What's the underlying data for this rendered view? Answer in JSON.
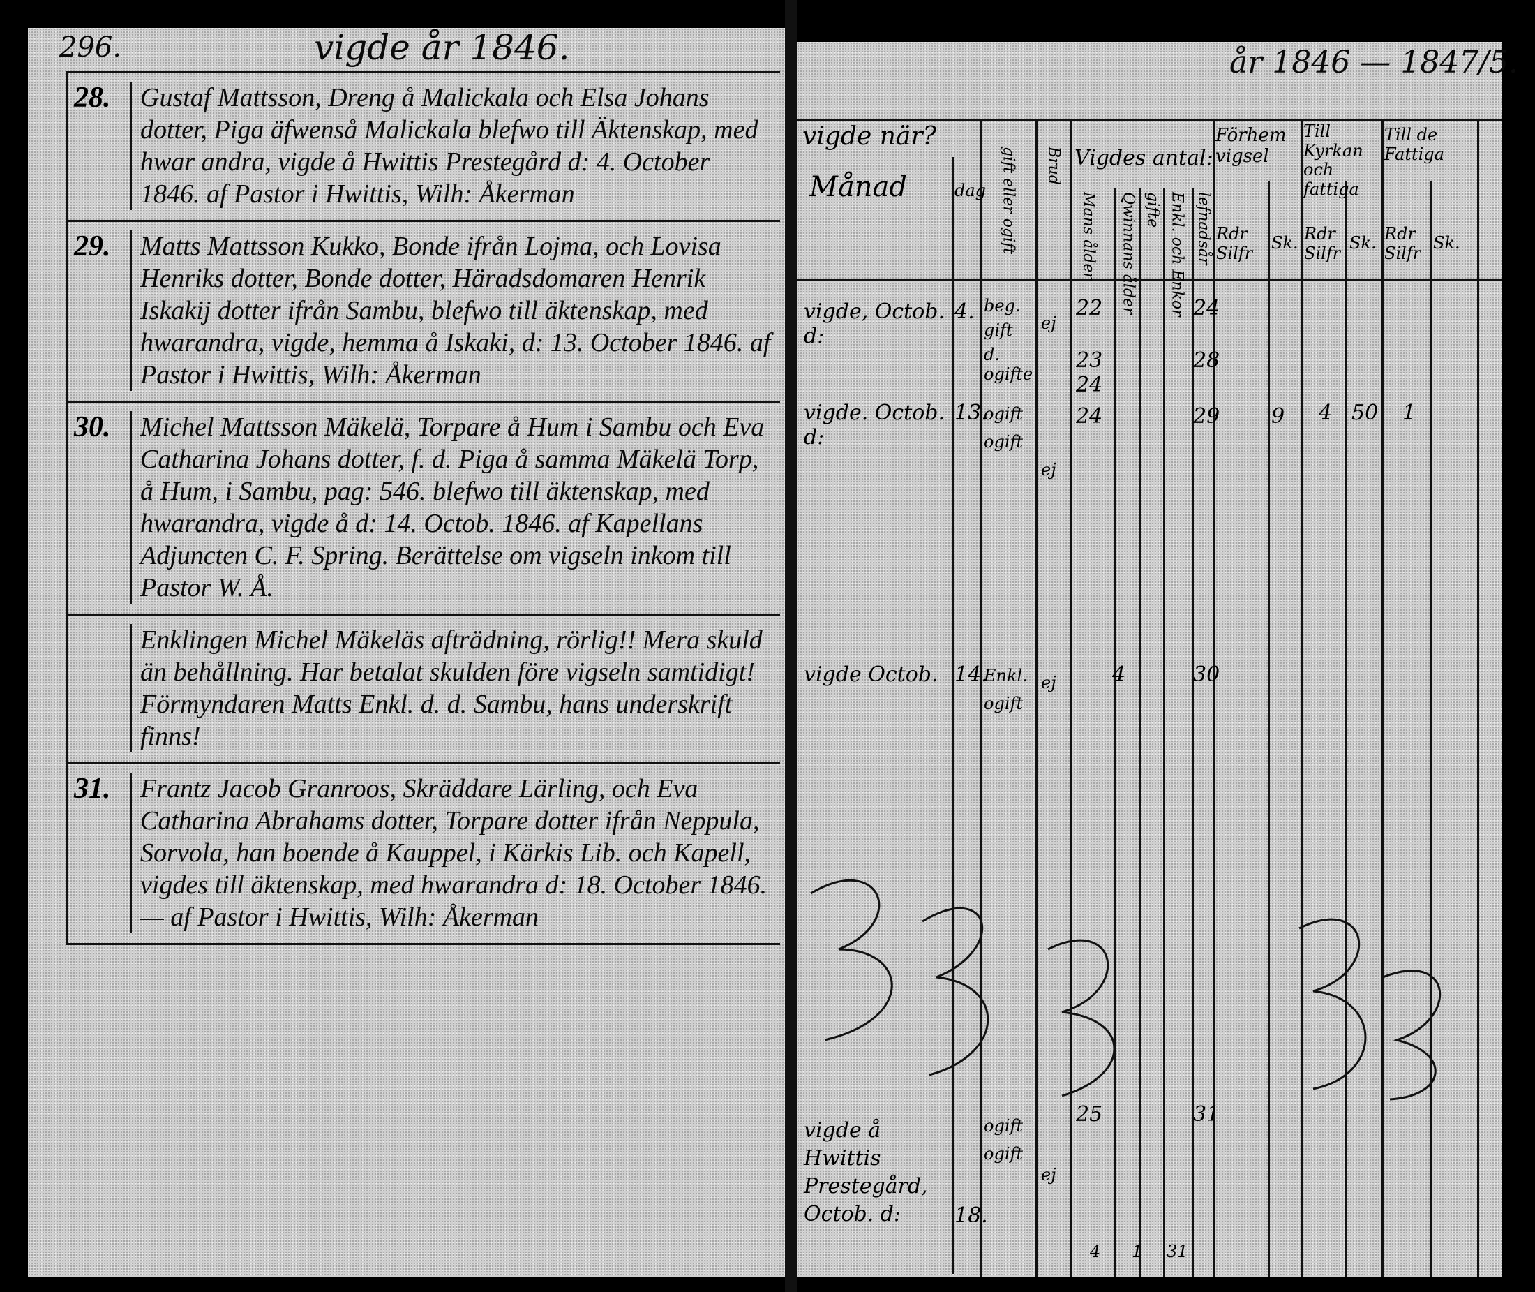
{
  "left_page": {
    "page_number": "296.",
    "header": "vigde år 1846.",
    "entries": [
      {
        "number": "28.",
        "text": "Gustaf Mattsson, Dreng å Malickala och Elsa Johans dotter, Piga äfwenså Malickala blefwo till Äktenskap, med hwar andra, vigde å Hwittis Prestegård d: 4. October 1846. af Pastor i Hwittis, Wilh: Åkerman"
      },
      {
        "number": "29.",
        "text": "Matts Mattsson Kukko, Bonde ifrån Lojma, och Lovisa Henriks dotter, Bonde dotter, Häradsdomaren Henrik Iskakij dotter ifrån Sambu, blefwo till äktenskap, med hwarandra, vigde, hemma å Iskaki, d: 13. October 1846. af Pastor i Hwittis, Wilh: Åkerman"
      },
      {
        "number": "30.",
        "text": "Michel Mattsson Mäkelä, Torpare å Hum i Sambu och Eva Catharina Johans dotter, f. d. Piga å samma Mäkelä Torp, å Hum, i Sambu, pag: 546. blefwo till äktenskap, med hwarandra, vigde å d: 14. Octob. 1846. af Kapellans Adjuncten C. F. Spring. Berättelse om vigseln inkom till Pastor W. Å."
      },
      {
        "number": "",
        "text": "Enklingen Michel Mäkeläs afträdning, rörlig!! Mera skuld än behållning. Har betalat skulden före vigseln samtidigt! Förmyndaren Matts Enkl. d. d. Sambu, hans underskrift finns!"
      },
      {
        "number": "31.",
        "text": "Frantz Jacob Granroos, Skräddare Lärling, och Eva Catharina Abrahams dotter, Torpare dotter ifrån Neppula, Sorvola, han boende å Kauppel, i Kärkis Lib. och Kapell, vigdes till äktenskap, med hwarandra d: 18. October 1846. — af Pastor i Hwittis, Wilh: Åkerman"
      }
    ]
  },
  "right_page": {
    "header": "år 1846 — 1847/5.",
    "columns": {
      "when": "vigde när?",
      "month": "Månad",
      "day": "dag",
      "status_groom": "gift eller ogift",
      "status_bride": "Brud",
      "count": "Vigdes antal:",
      "count_sub": [
        "Mans ålder",
        "Qwinnans ålder",
        "gifte",
        "Enkl. och Enkor",
        "lefnadsår"
      ],
      "fee_home": "Förhem vigsel",
      "fee_church": "Till Kyrkan och fattiga",
      "fee_poor": "Till de Fattiga",
      "currency": [
        "Rdr Silfr",
        "Sk."
      ]
    },
    "rows": [
      {
        "month": "vigde, Octob. d:",
        "day": "4.",
        "status": [
          "beg.",
          "gift",
          "d. ogifte"
        ],
        "bride": "ej",
        "ages": [
          "22",
          "23",
          "24",
          "28"
        ],
        "fees": []
      },
      {
        "month": "vigde. Octob. d:",
        "day": "13.",
        "status": [
          "ogift",
          "ogift"
        ],
        "bride": "ej",
        "ages": [
          "24",
          "24",
          "29"
        ],
        "fees": [
          "9",
          "4",
          "50",
          "1"
        ]
      },
      {
        "month": "vigde Octob.",
        "day": "14.",
        "status": [
          "Enkl.",
          "ogift"
        ],
        "bride": "ej",
        "ages": [
          "4",
          "30"
        ],
        "fees": []
      },
      {
        "month": "vigde å Hwittis Prestegård, Octob. d:",
        "day": "18.",
        "status": [
          "ogift",
          "ogift"
        ],
        "bride": "ej",
        "ages": [
          "25",
          "31"
        ],
        "fees": []
      }
    ],
    "totals": [
      "4",
      "1",
      "31"
    ]
  },
  "colors": {
    "paper": "#cfcfcf",
    "ink": "#0a0a0a",
    "background": "#000000"
  }
}
